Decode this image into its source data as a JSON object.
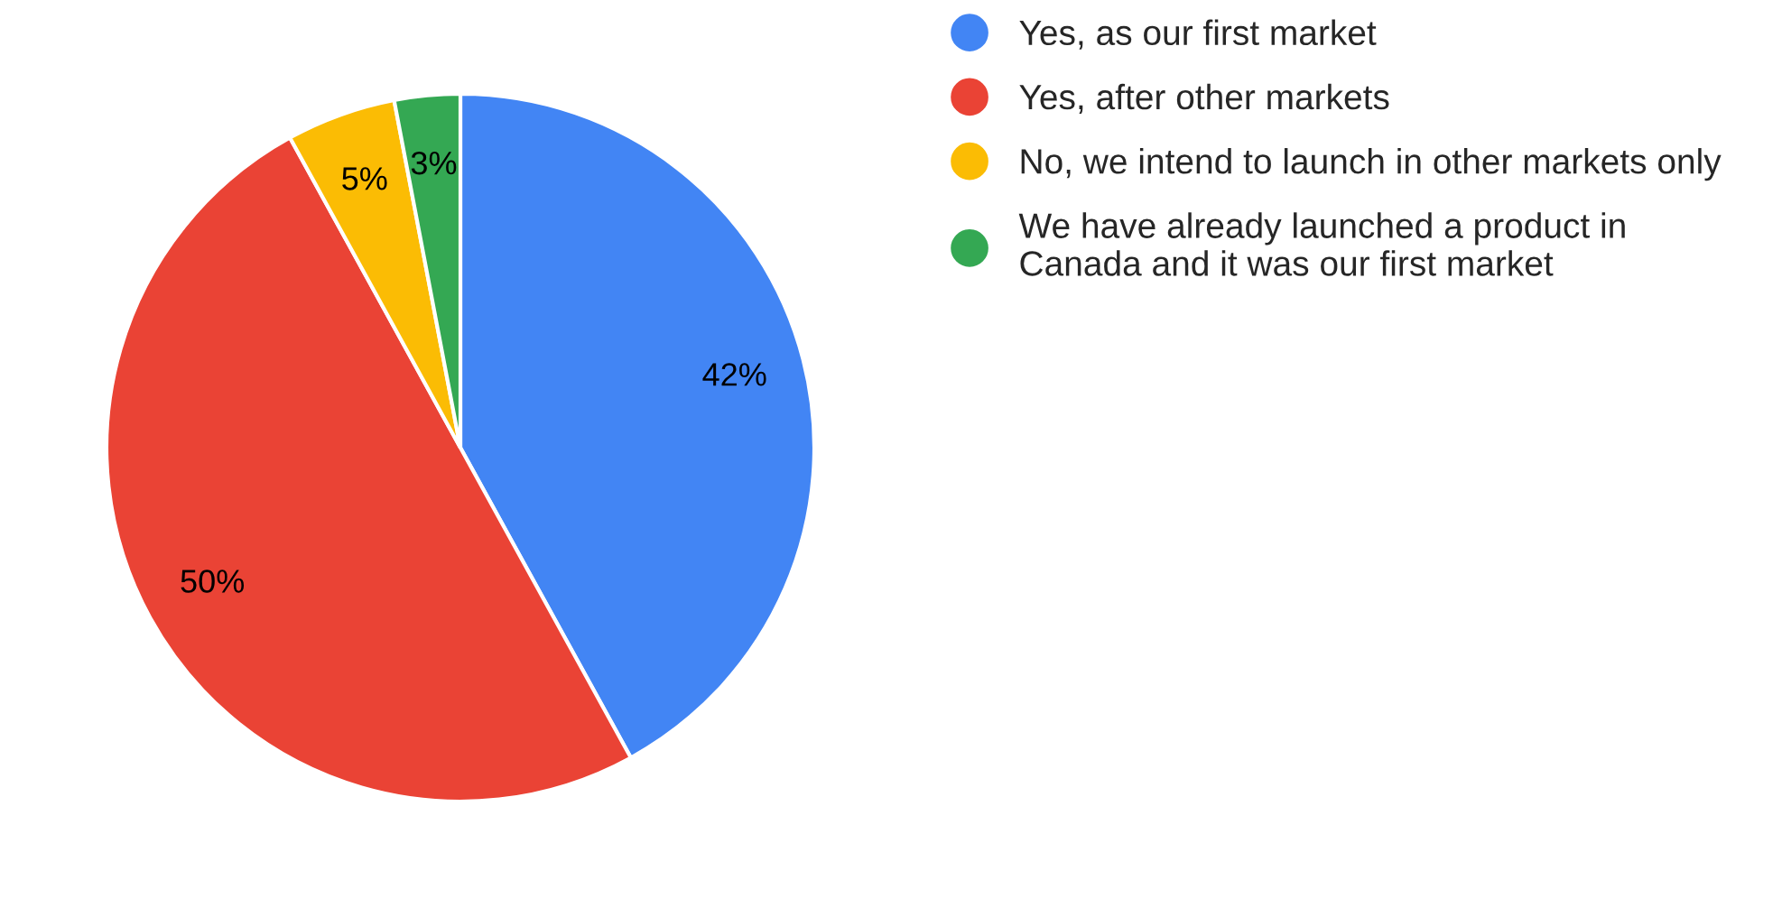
{
  "chart_data": {
    "type": "pie",
    "categories": [
      "Yes, as our first market",
      "Yes, after other markets",
      "No, we intend to launch in other markets only",
      "We have already launched a product in\nCanada and it was our first market"
    ],
    "values": [
      42,
      50,
      5,
      3
    ],
    "colors": [
      "#4285f4",
      "#ea4335",
      "#fbbc04",
      "#34a853"
    ],
    "value_labels": [
      "42%",
      "50%",
      "5%",
      "3%"
    ],
    "legend": "right"
  }
}
